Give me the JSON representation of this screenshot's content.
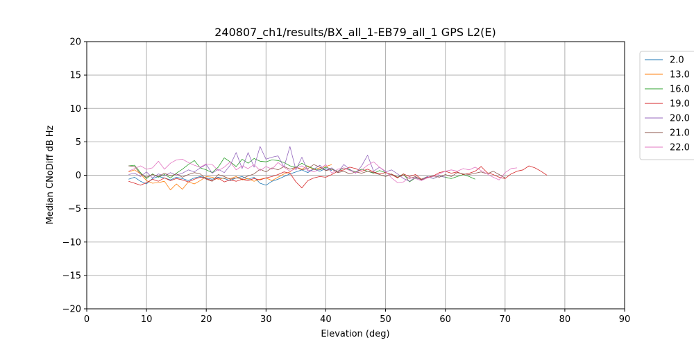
{
  "chart_data": {
    "type": "line",
    "title": "240807_ch1/results/BX_all_1-EB79_all_1 GPS L2(E)",
    "xlabel": "Elevation (deg)",
    "ylabel": "Median CNoDiff dB Hz",
    "xlim": [
      0,
      90
    ],
    "ylim": [
      -20,
      20
    ],
    "xticks": [
      0,
      10,
      20,
      30,
      40,
      50,
      60,
      70,
      80,
      90
    ],
    "yticks": [
      -20,
      -15,
      -10,
      -5,
      0,
      5,
      10,
      15,
      20
    ],
    "grid": true,
    "legend_position": "outside-right-top",
    "series": [
      {
        "name": "2.0",
        "color": "#1f77b4",
        "x": [
          7,
          8,
          9,
          10,
          11,
          12,
          13,
          14,
          15,
          16,
          17,
          18,
          19,
          20,
          21,
          22,
          23,
          24,
          25,
          26,
          27,
          28,
          29,
          30,
          31,
          32,
          33,
          34,
          35,
          36,
          37,
          38,
          39,
          40,
          41
        ],
        "y": [
          -0.6,
          -0.3,
          -0.9,
          -1.3,
          -0.5,
          -0.2,
          -0.4,
          -0.7,
          -0.3,
          -0.5,
          -0.8,
          -0.4,
          -0.2,
          -0.4,
          -0.6,
          -0.3,
          -0.5,
          -0.8,
          -0.4,
          -0.2,
          -0.6,
          -0.3,
          -1.2,
          -1.5,
          -0.9,
          -0.6,
          -0.2,
          0.2,
          0.5,
          0.8,
          0.4,
          0.9,
          0.6,
          1.0,
          0.7
        ]
      },
      {
        "name": "13.0",
        "color": "#ff7f0e",
        "x": [
          7,
          8,
          9,
          10,
          11,
          12,
          13,
          14,
          15,
          16,
          17,
          18,
          19,
          20,
          21,
          22,
          23,
          24,
          25,
          26,
          27,
          28,
          29,
          30,
          31,
          32,
          33,
          34,
          35,
          36,
          37,
          38,
          39,
          40,
          41
        ],
        "y": [
          0.5,
          0.8,
          0.2,
          -0.8,
          -1.2,
          -1.1,
          -0.9,
          -2.2,
          -1.3,
          -2.1,
          -1.0,
          -1.3,
          -0.8,
          -0.2,
          -0.3,
          -0.6,
          -0.4,
          -0.5,
          -0.2,
          -0.7,
          -0.5,
          -0.9,
          -0.6,
          -0.4,
          -0.8,
          -0.3,
          0.2,
          0.5,
          1.2,
          0.9,
          1.4,
          0.8,
          1.1,
          1.3,
          1.6
        ]
      },
      {
        "name": "16.0",
        "color": "#2ca02c",
        "x": [
          7,
          8,
          9,
          10,
          11,
          12,
          13,
          14,
          15,
          16,
          17,
          18,
          19,
          20,
          21,
          22,
          23,
          24,
          25,
          26,
          27,
          28,
          29,
          30,
          31,
          32,
          33,
          34,
          35,
          36,
          37,
          38,
          39,
          40,
          41,
          42,
          43,
          44,
          45,
          46,
          47,
          48,
          49,
          50,
          51,
          52,
          53,
          54,
          55,
          56,
          57,
          58,
          59,
          60,
          61,
          62,
          63,
          64,
          65
        ],
        "y": [
          1.4,
          1.5,
          0.4,
          -0.5,
          0.2,
          -0.3,
          0.1,
          -0.4,
          0.3,
          0.9,
          1.6,
          2.2,
          1.1,
          0.8,
          0.4,
          1.2,
          2.6,
          2.0,
          1.3,
          2.4,
          1.8,
          2.5,
          2.1,
          2.0,
          2.3,
          2.2,
          1.9,
          1.4,
          1.2,
          1.8,
          1.3,
          1.0,
          0.8,
          1.2,
          0.9,
          0.6,
          1.1,
          0.8,
          0.5,
          0.9,
          0.6,
          0.3,
          0.7,
          0.4,
          0.1,
          -0.3,
          0.2,
          -1.0,
          -0.4,
          -0.6,
          -0.2,
          -0.5,
          -0.1,
          -0.3,
          -0.5,
          -0.2,
          0.1,
          -0.2,
          -0.6
        ]
      },
      {
        "name": "19.0",
        "color": "#d62728",
        "x": [
          7,
          8,
          9,
          10,
          11,
          12,
          13,
          14,
          15,
          16,
          17,
          18,
          19,
          20,
          21,
          22,
          23,
          24,
          25,
          26,
          27,
          28,
          29,
          30,
          31,
          32,
          33,
          34,
          35,
          36,
          37,
          38,
          39,
          40,
          41,
          42,
          43,
          44,
          45,
          46,
          47,
          48,
          49,
          50,
          51,
          52,
          53,
          54,
          55,
          56,
          57,
          58,
          59,
          60,
          61,
          62,
          63,
          64,
          65,
          66,
          67,
          68,
          69,
          70,
          71,
          72,
          73,
          74,
          75,
          76,
          77
        ],
        "y": [
          -0.9,
          -1.2,
          -1.5,
          -1.1,
          -0.6,
          -0.9,
          -0.4,
          -0.8,
          -0.5,
          -0.7,
          -1.0,
          -0.6,
          -0.3,
          -0.5,
          -0.8,
          -0.4,
          -1.0,
          -0.7,
          -0.9,
          -0.6,
          -0.8,
          -0.5,
          -0.7,
          -0.4,
          -0.2,
          0.1,
          0.5,
          0.3,
          -1.0,
          -1.9,
          -0.8,
          -0.4,
          -0.2,
          -0.3,
          0.1,
          0.6,
          0.8,
          1.2,
          1.0,
          0.6,
          0.9,
          0.5,
          0.2,
          0.4,
          0.1,
          -0.4,
          0.2,
          -0.2,
          0.1,
          -0.6,
          -0.3,
          -0.1,
          0.4,
          0.6,
          0.3,
          0.5,
          0.1,
          0.3,
          0.6,
          1.3,
          0.4,
          0.1,
          -0.3,
          -0.5,
          0.2,
          0.6,
          0.8,
          1.4,
          1.1,
          0.6,
          0.0
        ]
      },
      {
        "name": "20.0",
        "color": "#9467bd",
        "x": [
          7,
          8,
          9,
          10,
          11,
          12,
          13,
          14,
          15,
          16,
          17,
          18,
          19,
          20,
          21,
          22,
          23,
          24,
          25,
          26,
          27,
          28,
          29,
          30,
          31,
          32,
          33,
          34,
          35,
          36,
          37,
          38,
          39,
          40,
          41,
          42,
          43,
          44,
          45,
          46,
          47,
          48,
          49,
          50,
          51,
          52,
          53,
          54,
          55,
          56,
          57,
          58,
          59,
          60
        ],
        "y": [
          0.1,
          0.3,
          -0.2,
          0.5,
          -0.4,
          0.2,
          -0.1,
          0.4,
          0.0,
          0.3,
          0.8,
          0.5,
          1.1,
          1.6,
          0.3,
          0.9,
          0.4,
          1.5,
          3.4,
          1.0,
          3.4,
          1.2,
          4.3,
          2.4,
          2.7,
          2.9,
          1.2,
          4.3,
          0.8,
          2.7,
          0.6,
          0.9,
          1.5,
          0.7,
          1.1,
          0.4,
          1.6,
          0.9,
          0.3,
          1.4,
          3.0,
          0.6,
          1.2,
          0.5,
          0.8,
          0.2,
          -0.5,
          -0.9,
          -0.3,
          -0.7,
          -0.2,
          -0.5,
          -0.1,
          -0.3
        ]
      },
      {
        "name": "21.0",
        "color": "#8c564b",
        "x": [
          7,
          8,
          9,
          10,
          11,
          12,
          13,
          14,
          15,
          16,
          17,
          18,
          19,
          20,
          21,
          22,
          23,
          24,
          25,
          26,
          27,
          28,
          29,
          30,
          31,
          32,
          33,
          34,
          35,
          36,
          37,
          38,
          39,
          40,
          41,
          42,
          43,
          44,
          45,
          46,
          47,
          48,
          49,
          50,
          51,
          52,
          53,
          54,
          55,
          56,
          57,
          58,
          59,
          60,
          61,
          62,
          63,
          64,
          65,
          66,
          67,
          68,
          69,
          70
        ],
        "y": [
          1.4,
          1.3,
          0.2,
          -0.3,
          0.1,
          -0.2,
          0.3,
          -0.1,
          0.2,
          -0.3,
          0.1,
          0.4,
          0.2,
          -0.6,
          -0.9,
          0.1,
          -0.2,
          -0.6,
          -0.4,
          -0.5,
          -0.1,
          0.2,
          0.9,
          0.5,
          1.1,
          0.8,
          1.3,
          0.9,
          1.2,
          0.8,
          1.0,
          1.6,
          1.2,
          0.7,
          0.9,
          0.4,
          0.6,
          0.2,
          0.5,
          0.3,
          0.6,
          0.4,
          0.1,
          -0.2,
          0.2,
          -0.3,
          0.0,
          -0.5,
          -0.2,
          -0.7,
          -0.4,
          -0.1,
          -0.3,
          0.1,
          -0.2,
          0.4,
          0.2,
          0.1,
          0.3,
          0.5,
          0.2,
          0.6,
          0.1,
          -0.4
        ]
      },
      {
        "name": "22.0",
        "color": "#e377c2",
        "x": [
          7,
          8,
          9,
          10,
          11,
          12,
          13,
          14,
          15,
          16,
          17,
          18,
          19,
          20,
          21,
          22,
          23,
          24,
          25,
          26,
          27,
          28,
          29,
          30,
          31,
          32,
          33,
          34,
          35,
          36,
          37,
          38,
          39,
          40,
          41,
          42,
          43,
          44,
          45,
          46,
          47,
          48,
          49,
          50,
          51,
          52,
          53,
          54,
          55,
          56,
          57,
          58,
          59,
          60,
          61,
          62,
          63,
          64,
          65,
          66,
          67,
          68,
          69,
          70,
          71,
          72
        ],
        "y": [
          0.6,
          1.0,
          1.4,
          0.9,
          1.1,
          2.1,
          0.9,
          1.8,
          2.3,
          2.4,
          1.9,
          1.5,
          1.2,
          1.7,
          1.6,
          0.7,
          1.2,
          2.0,
          0.8,
          1.4,
          1.0,
          1.6,
          0.7,
          1.3,
          0.9,
          1.9,
          1.2,
          0.6,
          1.0,
          1.4,
          0.8,
          0.5,
          0.9,
          1.6,
          0.3,
          0.9,
          1.1,
          0.7,
          0.4,
          0.8,
          1.5,
          2.0,
          1.2,
          0.6,
          -0.4,
          -1.1,
          -1.0,
          -0.3,
          -0.5,
          -0.8,
          -0.4,
          -0.2,
          0.2,
          0.6,
          0.8,
          0.6,
          1.0,
          0.8,
          1.2,
          0.7,
          0.2,
          -0.3,
          -0.7,
          0.4,
          1.0,
          1.1
        ]
      }
    ]
  }
}
